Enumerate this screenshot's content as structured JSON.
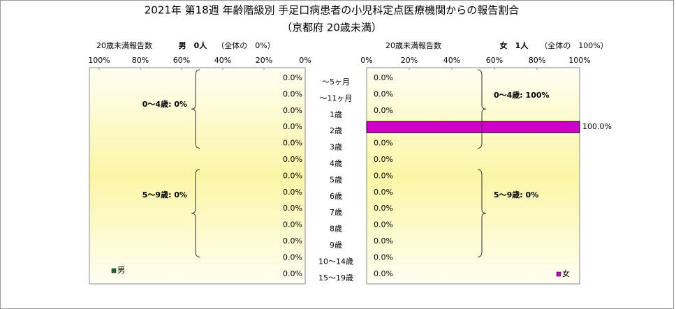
{
  "chart_data": {
    "type": "pyramid",
    "title": "2021年 第18週 年齢階級別 手足口病患者の小児科定点医療機関からの報告割合",
    "subtitle": "（京都府 20歳未満）",
    "categories": [
      "～5ヶ月",
      "～11ヶ月",
      "1歳",
      "2歳",
      "3歳",
      "4歳",
      "5歳",
      "6歳",
      "7歳",
      "8歳",
      "9歳",
      "10～14歳",
      "15～19歳"
    ],
    "xlim": [
      0,
      100
    ],
    "xticks": [
      {
        "value": 0,
        "label": "0%"
      },
      {
        "value": 20,
        "label": "20%"
      },
      {
        "value": 40,
        "label": "40%"
      },
      {
        "value": 60,
        "label": "60%"
      },
      {
        "value": 80,
        "label": "80%"
      },
      {
        "value": 100,
        "label": "100%"
      }
    ],
    "series": [
      {
        "name": "男",
        "color": "#1f6b3a",
        "axis_title": "20歳未満報告数",
        "header": "男　0人",
        "share": "（全体の　0%）",
        "values": [
          0,
          0,
          0,
          0,
          0,
          0,
          0,
          0,
          0,
          0,
          0,
          0,
          0
        ],
        "value_labels": [
          "0.0%",
          "0.0%",
          "0.0%",
          "0.0%",
          "0.0%",
          "0.0%",
          "0.0%",
          "0.0%",
          "0.0%",
          "0.0%",
          "0.0%",
          "0.0%",
          "0.0%"
        ],
        "annotations": [
          "0～4歳: 0%",
          "5～9歳: 0%"
        ]
      },
      {
        "name": "女",
        "color": "#cc00cc",
        "axis_title": "20歳未満報告数",
        "header": "女　1人",
        "share": "（全体の　100%）",
        "values": [
          0,
          0,
          0,
          100,
          0,
          0,
          0,
          0,
          0,
          0,
          0,
          0,
          0
        ],
        "value_labels": [
          "0.0%",
          "0.0%",
          "0.0%",
          "100.0%",
          "0.0%",
          "0.0%",
          "0.0%",
          "0.0%",
          "0.0%",
          "0.0%",
          "0.0%",
          "0.0%",
          "0.0%"
        ],
        "annotations": [
          "0～4歳: 100%",
          "5～9歳: 0%"
        ]
      }
    ]
  }
}
